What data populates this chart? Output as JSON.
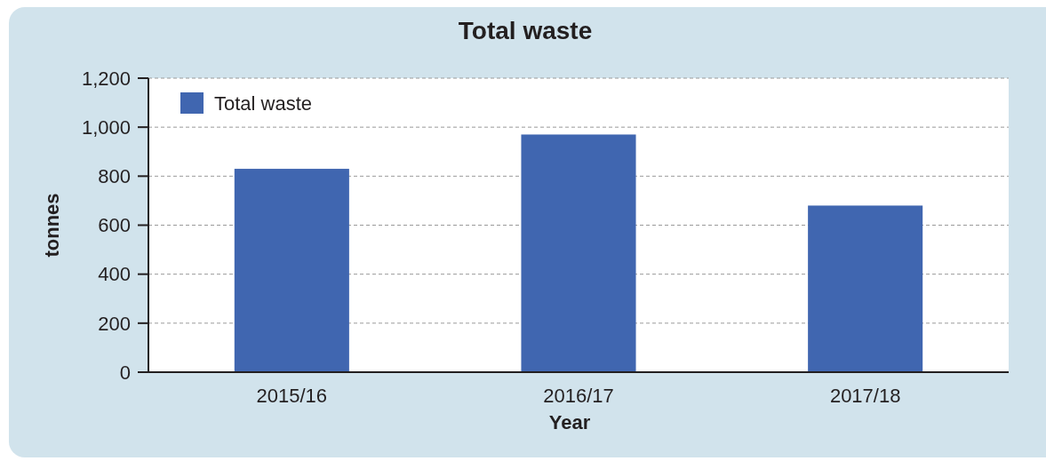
{
  "chart_data": {
    "type": "bar",
    "title": "Total waste",
    "xlabel": "Year",
    "ylabel": "tonnes",
    "categories": [
      "2015/16",
      "2016/17",
      "2017/18"
    ],
    "series": [
      {
        "name": "Total waste",
        "color": "#4066b0",
        "values": [
          830,
          970,
          680
        ]
      }
    ],
    "ylim": [
      0,
      1200
    ],
    "yticks": [
      0,
      200,
      400,
      600,
      800,
      {
        "value": 1000,
        "label": "1,000"
      },
      {
        "value": 1200,
        "label": "1,200"
      }
    ],
    "grid": "y",
    "legend": "top left"
  }
}
